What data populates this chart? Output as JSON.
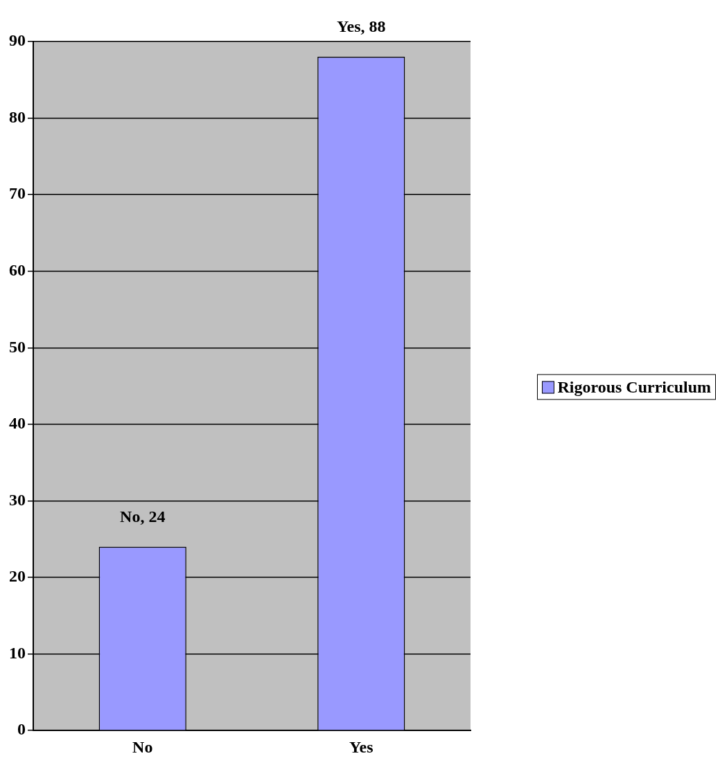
{
  "chart_data": {
    "type": "bar",
    "categories": [
      "No",
      "Yes"
    ],
    "series": [
      {
        "name": "Rigorous Curriculum",
        "color": "#9999ff",
        "values": [
          24,
          88
        ],
        "value_labels": [
          "No, 24",
          "Yes, 88"
        ]
      }
    ],
    "ylim": [
      0,
      90
    ],
    "yticks": [
      0,
      10,
      20,
      30,
      40,
      50,
      60,
      70,
      80,
      90
    ],
    "grid": "y",
    "legend": "right"
  }
}
